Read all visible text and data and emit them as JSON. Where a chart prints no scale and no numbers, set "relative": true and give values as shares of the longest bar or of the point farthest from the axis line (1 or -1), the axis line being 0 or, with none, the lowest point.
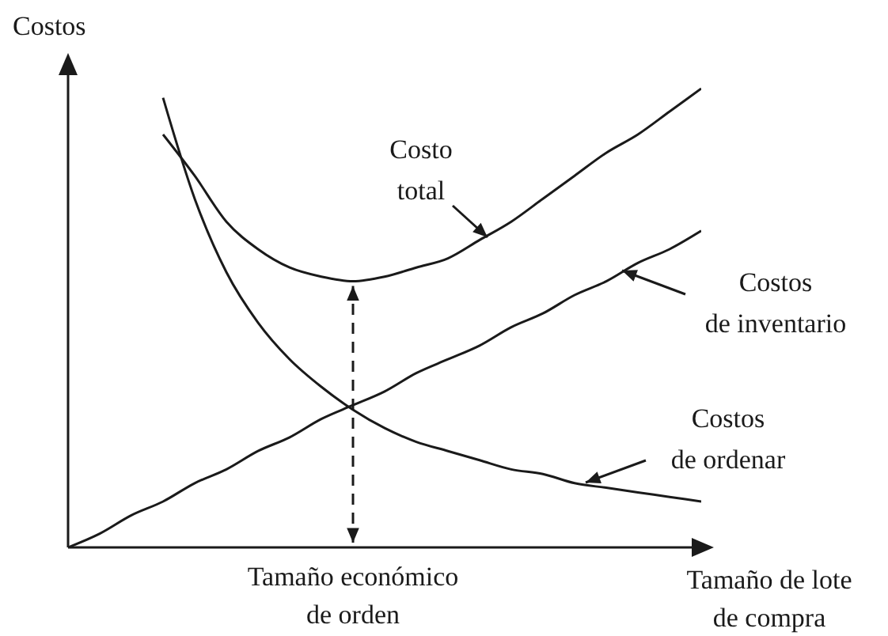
{
  "chart_data": {
    "type": "line",
    "relative": true,
    "xlabel": "Tamaño de lote de compra",
    "ylabel": "Costos",
    "annotations": [
      "Tamaño económico de orden"
    ],
    "categories": [
      null,
      null,
      null,
      null,
      null,
      null,
      null,
      null,
      null,
      null,
      null,
      null,
      null,
      null,
      null,
      null,
      null,
      null,
      null,
      null,
      null
    ],
    "series": [
      {
        "name": "Costo total",
        "color": "#1a1a1a",
        "values": [
          null,
          null,
          null,
          0.9,
          0.81,
          0.71,
          0.65,
          0.61,
          0.59,
          0.58,
          0.59,
          0.61,
          0.63,
          0.67,
          0.71,
          0.76,
          0.81,
          0.86,
          0.9,
          0.95,
          1
        ]
      },
      {
        "name": "Costos de inventario",
        "color": "#1a1a1a",
        "values": [
          0,
          0.03,
          0.07,
          0.1,
          0.14,
          0.17,
          0.21,
          0.24,
          0.28,
          0.31,
          0.34,
          0.38,
          0.41,
          0.44,
          0.48,
          0.51,
          0.55,
          0.58,
          0.62,
          0.65,
          0.69
        ]
      },
      {
        "name": "Costos de ordenar",
        "color": "#1a1a1a",
        "values": [
          null,
          null,
          null,
          0.98,
          0.76,
          0.6,
          0.49,
          0.41,
          0.35,
          0.3,
          0.26,
          0.23,
          0.21,
          0.19,
          0.17,
          0.16,
          0.14,
          0.13,
          0.12,
          0.11,
          0.1
        ]
      }
    ]
  }
}
